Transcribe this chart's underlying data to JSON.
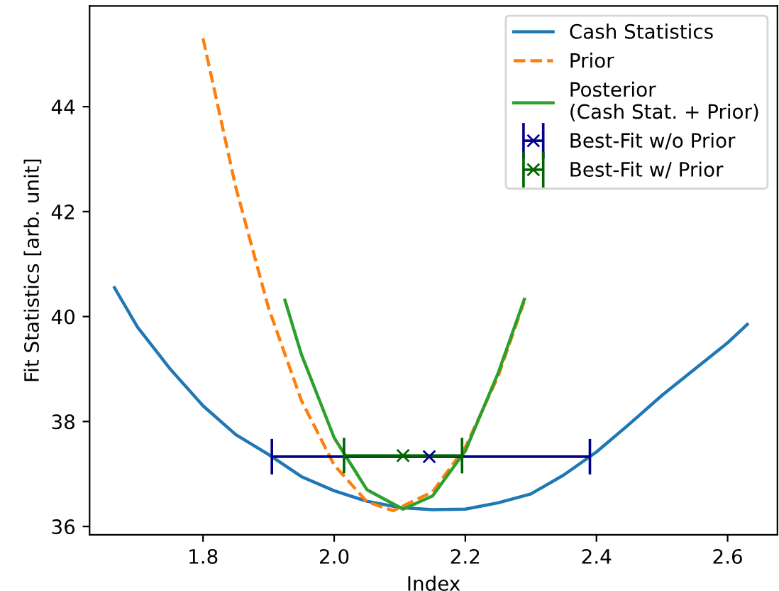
{
  "chart_data": {
    "type": "line",
    "xlabel": "Index",
    "ylabel": "Fit Statistics [arb. unit]",
    "xlim": [
      1.627,
      2.676
    ],
    "ylim": [
      35.84,
      45.92
    ],
    "xticks": [
      1.8,
      {
        "value": 2.0,
        "label": "2.0"
      },
      2.2,
      2.4,
      2.6
    ],
    "yticks": [
      36,
      38,
      40,
      42,
      44
    ],
    "grid": false,
    "legend": "top right",
    "series": [
      {
        "name": "Cash Statistics",
        "color": "#1f77b4",
        "line_style": "solid",
        "x": [
          1.665,
          1.7,
          1.75,
          1.8,
          1.85,
          1.9,
          1.95,
          2.0,
          2.05,
          2.1,
          2.15,
          2.2,
          2.25,
          2.3,
          2.35,
          2.4,
          2.45,
          2.5,
          2.55,
          2.6,
          2.63
        ],
        "values": [
          40.55,
          39.8,
          39.0,
          38.3,
          37.75,
          37.37,
          36.95,
          36.68,
          36.48,
          36.36,
          36.32,
          36.33,
          36.45,
          36.62,
          36.98,
          37.42,
          37.95,
          38.5,
          39.0,
          39.5,
          39.85
        ]
      },
      {
        "name": "Prior",
        "color": "#ff7f0e",
        "line_style": "dashed",
        "x": [
          1.8,
          1.85,
          1.9,
          1.95,
          2.0,
          2.05,
          2.09,
          2.15,
          2.2,
          2.25,
          2.29
        ],
        "values": [
          45.3,
          42.46,
          40.16,
          38.4,
          37.17,
          36.47,
          36.3,
          36.66,
          37.51,
          38.86,
          40.3
        ]
      },
      {
        "name": "Posterior\n(Cash Stat. + Prior)",
        "color": "#2ca02c",
        "line_style": "solid",
        "x": [
          1.925,
          1.95,
          2.0,
          2.05,
          2.105,
          2.15,
          2.2,
          2.25,
          2.29
        ],
        "values": [
          40.31,
          39.28,
          37.69,
          36.7,
          36.33,
          36.58,
          37.44,
          38.92,
          40.33
        ]
      },
      {
        "name": "Best-Fit w/o Prior",
        "type": "scatter",
        "marker": "cross",
        "color": "#00008b",
        "x": [
          2.145
        ],
        "values": [
          37.33
        ],
        "xerrors": [
          [
            1.905,
            2.39
          ]
        ]
      },
      {
        "name": "Best-Fit w/ Prior",
        "type": "scatter",
        "marker": "cross",
        "color": "#006400",
        "x": [
          2.105
        ],
        "values": [
          37.35
        ],
        "xerrors": [
          [
            2.015,
            2.195
          ]
        ]
      }
    ]
  }
}
